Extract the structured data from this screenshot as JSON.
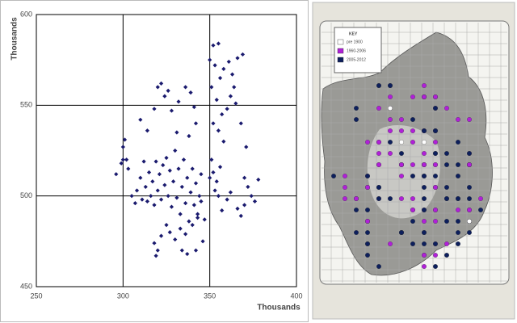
{
  "chart_data": {
    "type": "scatter",
    "x_label": "Thousands",
    "y_label": "Thousands",
    "color": "#1a1a6e",
    "xlim": [
      250,
      400
    ],
    "ylim": [
      450,
      600
    ],
    "xticks": [
      250,
      300,
      350,
      400
    ],
    "yticks": [
      450,
      500,
      550,
      600
    ],
    "grid": true,
    "x": [
      296,
      299,
      300,
      300,
      301,
      302,
      303,
      305,
      307,
      308,
      310,
      311,
      312,
      313,
      314,
      315,
      316,
      317,
      318,
      319,
      320,
      321,
      322,
      323,
      324,
      325,
      326,
      327,
      328,
      329,
      330,
      331,
      332,
      333,
      334,
      335,
      336,
      337,
      338,
      339,
      340,
      341,
      342,
      343,
      344,
      345,
      320,
      318,
      322,
      319,
      325,
      327,
      330,
      333,
      336,
      340,
      343,
      320,
      322,
      324,
      326,
      318,
      328,
      332,
      336,
      339,
      341,
      310,
      314,
      331,
      338,
      342,
      350,
      352,
      354,
      353,
      356,
      355,
      351,
      357,
      360,
      362,
      350,
      352,
      355,
      353,
      356,
      358,
      361,
      363,
      366,
      369,
      351,
      354,
      357,
      360,
      362,
      364,
      365,
      352,
      355,
      358,
      368,
      371,
      370,
      372,
      374,
      376,
      378,
      370,
      366,
      368,
      345,
      347,
      342,
      346,
      334,
      337
    ],
    "y": [
      512,
      518,
      520,
      527,
      531,
      520,
      515,
      500,
      496,
      503,
      510,
      498,
      519,
      505,
      497,
      513,
      500,
      508,
      495,
      519,
      503,
      512,
      498,
      517,
      506,
      521,
      500,
      514,
      494,
      508,
      525,
      499,
      515,
      490,
      505,
      520,
      496,
      510,
      486,
      502,
      515,
      495,
      507,
      488,
      500,
      512,
      470,
      474,
      478,
      467,
      484,
      480,
      476,
      482,
      479,
      484,
      490,
      560,
      562,
      555,
      558,
      548,
      547,
      552,
      560,
      557,
      549,
      542,
      536,
      535,
      533,
      540,
      510,
      513,
      508,
      503,
      516,
      500,
      520,
      492,
      498,
      502,
      575,
      583,
      584,
      572,
      565,
      570,
      574,
      567,
      576,
      578,
      560,
      553,
      545,
      548,
      555,
      560,
      551,
      540,
      536,
      530,
      540,
      527,
      510,
      505,
      500,
      497,
      509,
      495,
      493,
      489,
      497,
      487,
      470,
      475,
      470,
      468
    ]
  },
  "map": {
    "key_title": "KEY",
    "key": [
      {
        "label": "pre 1900",
        "color": "#ffffff"
      },
      {
        "label": "1960-2006",
        "color": "#b020d8"
      },
      {
        "label": "2005-2012",
        "color": "#0d1f5c"
      }
    ]
  }
}
